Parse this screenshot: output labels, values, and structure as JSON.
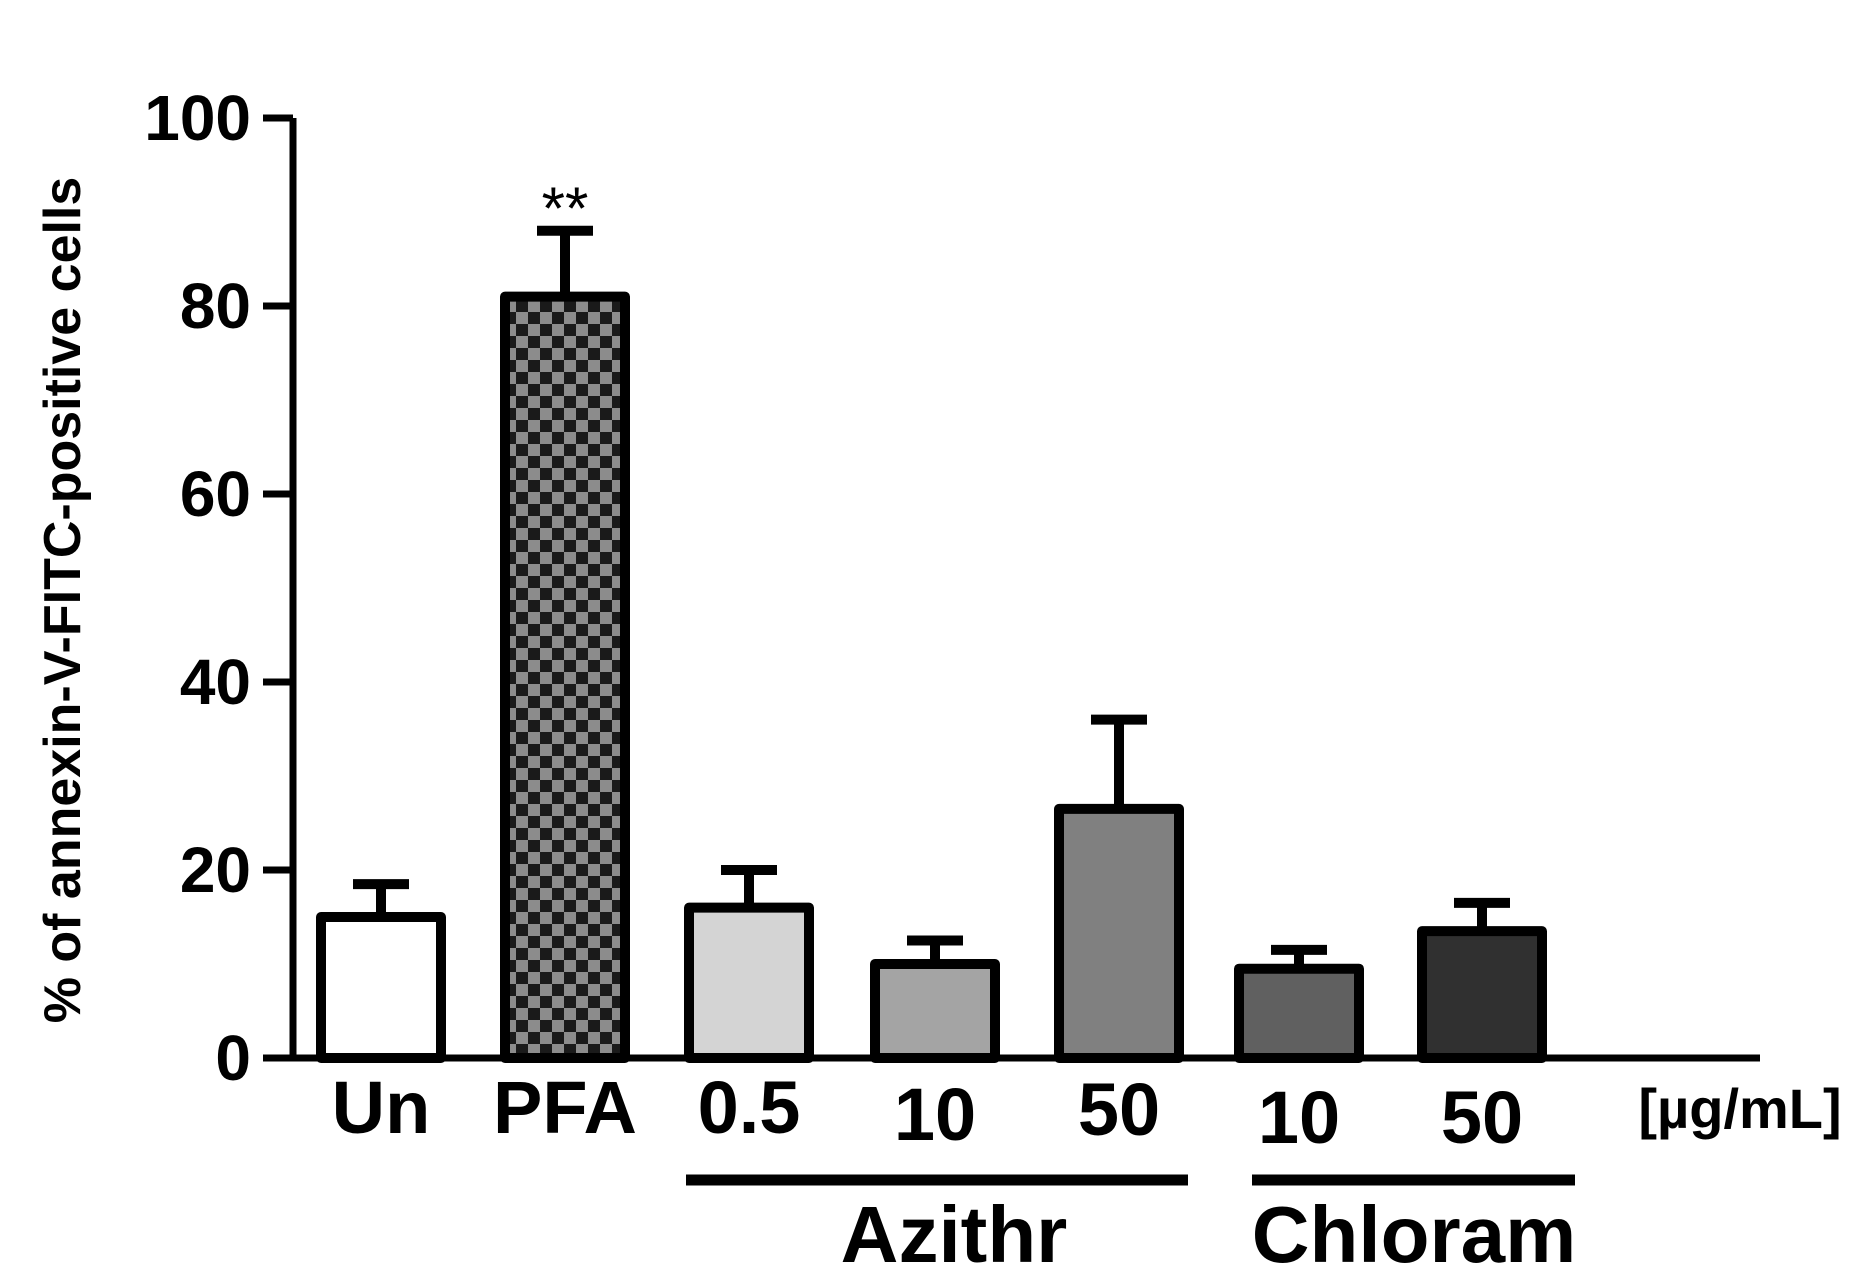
{
  "chart_data": {
    "type": "bar",
    "ylabel": "% of annexin-V-FITC-positive cells",
    "ylim": [
      0,
      100
    ],
    "yticks": [
      0,
      20,
      40,
      60,
      80,
      100
    ],
    "categories": [
      "Un",
      "PFA",
      "0.5",
      "10",
      "50",
      "10",
      "50"
    ],
    "values": [
      15,
      81,
      16,
      10,
      26.5,
      9.5,
      13.5
    ],
    "errors": [
      3.5,
      7,
      4,
      2.5,
      9.5,
      2,
      3
    ],
    "fills": [
      "#ffffff",
      "checker",
      "#d4d4d4",
      "#a4a4a4",
      "#808080",
      "#606060",
      "#303030"
    ],
    "annotations": [
      {
        "category_index": 1,
        "text": "**"
      }
    ],
    "unit_label": "[µg/mL]",
    "groups": [
      {
        "label": "Azithr",
        "category_indices": [
          2,
          3,
          4
        ]
      },
      {
        "label": "Chloram",
        "category_indices": [
          5,
          6
        ]
      }
    ],
    "grid": false,
    "legend": "none"
  }
}
